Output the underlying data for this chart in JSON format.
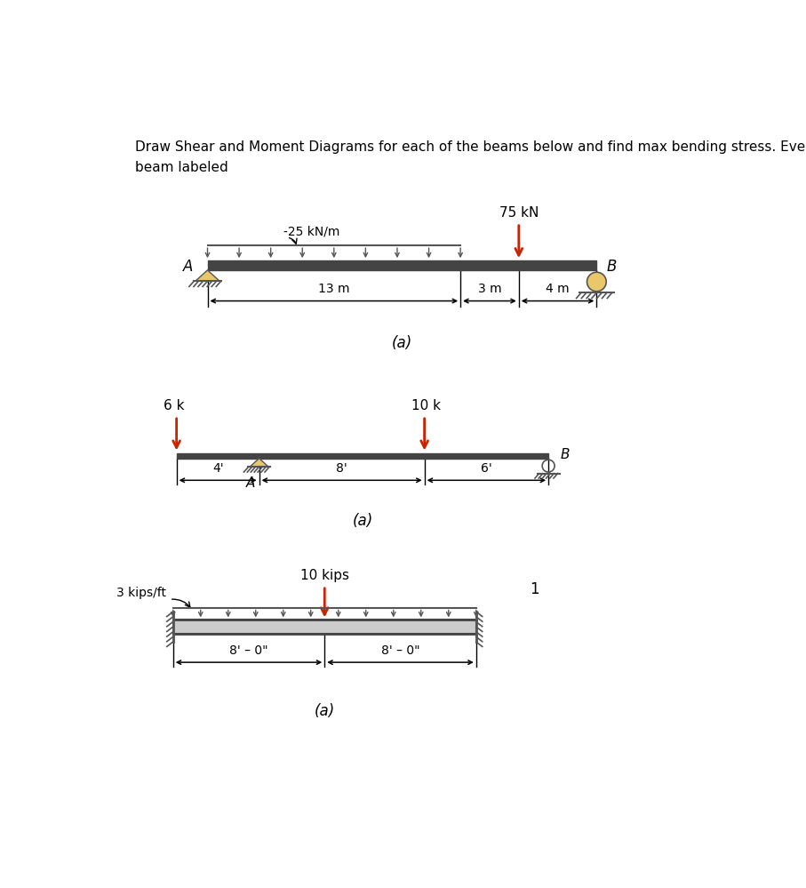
{
  "title": "Draw Shear and Moment Diagrams for each of the beams below and find max bending stress. Every\nbeam labeled",
  "title_fontsize": 11,
  "bg_color": "#ffffff",
  "beam1": {
    "label_A": "A",
    "label_B": "B",
    "dist_load_label": "-25 kN/m",
    "point_load_label": "75 kN",
    "dim1": "13 m",
    "dim2": "3 m",
    "dim3": "4 m",
    "caption": "(a)"
  },
  "beam2": {
    "label_A": "A",
    "label_B": "B",
    "load1_label": "6 k",
    "load2_label": "10 k",
    "dim1": "4'",
    "dim2": "8'",
    "dim3": "6'",
    "caption": "(a)"
  },
  "beam3": {
    "dist_load_label": "3 kips/ft",
    "point_load_label": "10 kips",
    "dim1": "8' – 0\"",
    "dim2": "8' – 0\"",
    "label_1": "1",
    "caption": "(a)"
  },
  "pin_color": "#e8c86a",
  "roller_color": "#e8c86a",
  "hatch_color": "#555555",
  "beam_color": "#444444",
  "arrow_color": "#cc2200",
  "dim_color": "#000000",
  "black": "#000000"
}
